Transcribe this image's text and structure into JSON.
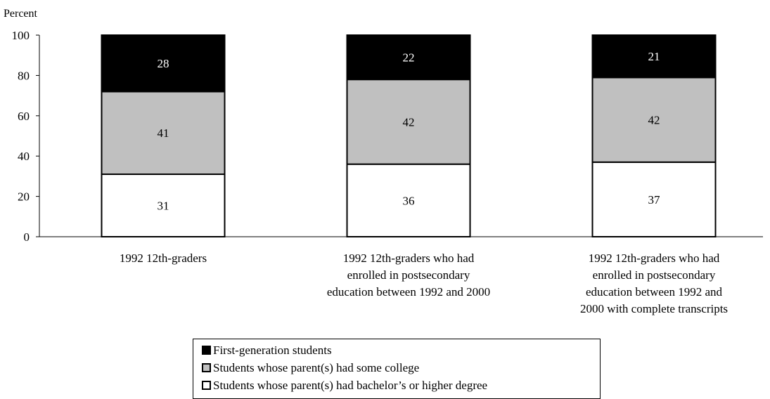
{
  "chart_data": {
    "type": "bar",
    "stacked": true,
    "ylabel": "Percent",
    "ylim": [
      0,
      100
    ],
    "yticks": [
      "0",
      "20",
      "40",
      "60",
      "80",
      "100"
    ],
    "categories": [
      [
        "1992 12th-graders"
      ],
      [
        "1992 12th-graders who had",
        "enrolled in postsecondary",
        "education between 1992 and 2000"
      ],
      [
        "1992 12th-graders who had",
        "enrolled in postsecondary",
        "education between 1992 and",
        "2000 with complete transcripts"
      ]
    ],
    "series": [
      {
        "name": "Students whose parent(s) had bachelor’s or higher degree",
        "color": "#ffffff",
        "label_color": "#000000",
        "values": [
          31,
          36,
          37
        ]
      },
      {
        "name": "Students whose parent(s) had some college",
        "color": "#c0c0c0",
        "label_color": "#000000",
        "values": [
          41,
          42,
          42
        ]
      },
      {
        "name": "First-generation students",
        "color": "#000000",
        "label_color": "#ffffff",
        "values": [
          28,
          22,
          21
        ]
      }
    ],
    "legend": [
      {
        "name": "First-generation students",
        "color": "#000000"
      },
      {
        "name": "Students whose parent(s) had some college",
        "color": "#c0c0c0"
      },
      {
        "name": "Students whose parent(s) had bachelor’s or higher degree",
        "color": "#ffffff"
      }
    ],
    "legend_position": "bottom",
    "grid": false
  }
}
